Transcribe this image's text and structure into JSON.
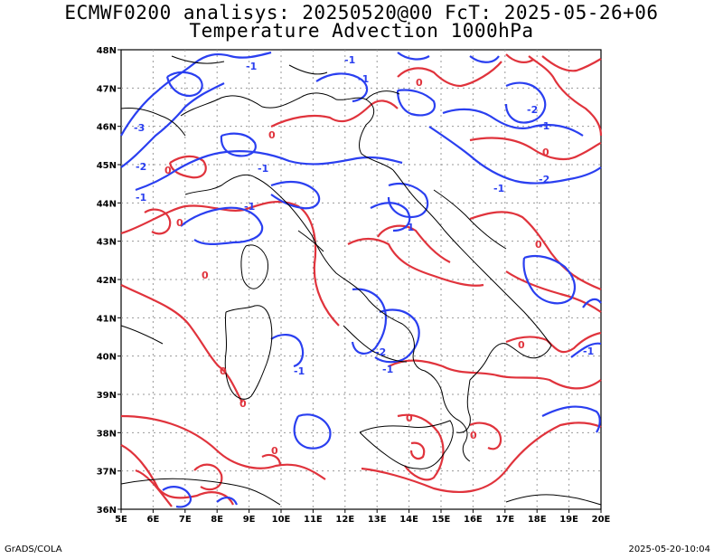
{
  "header": {
    "line1": "ECMWF0200 analisys: 20250520@00 FcT: 2025-05-26+06",
    "line2": "Temperature Advection 1000hPa"
  },
  "footer": {
    "left": "GrADS/COLA",
    "right": "2025-05-20-10:04"
  },
  "axes": {
    "lat_labels": [
      "48N",
      "47N",
      "46N",
      "45N",
      "44N",
      "43N",
      "42N",
      "41N",
      "40N",
      "39N",
      "38N",
      "37N",
      "36N"
    ],
    "lon_labels": [
      "5E",
      "6E",
      "7E",
      "8E",
      "9E",
      "10E",
      "11E",
      "12E",
      "13E",
      "14E",
      "15E",
      "16E",
      "17E",
      "18E",
      "19E",
      "20E"
    ]
  },
  "colors": {
    "negative": "#2a3ff0",
    "positive": "#e0333c",
    "coast": "#000000",
    "grid": "#9a9a9a"
  },
  "contour_labels": {
    "neg_one": "-1",
    "neg_two": "-2",
    "neg_three": "-3",
    "zero": "0"
  }
}
